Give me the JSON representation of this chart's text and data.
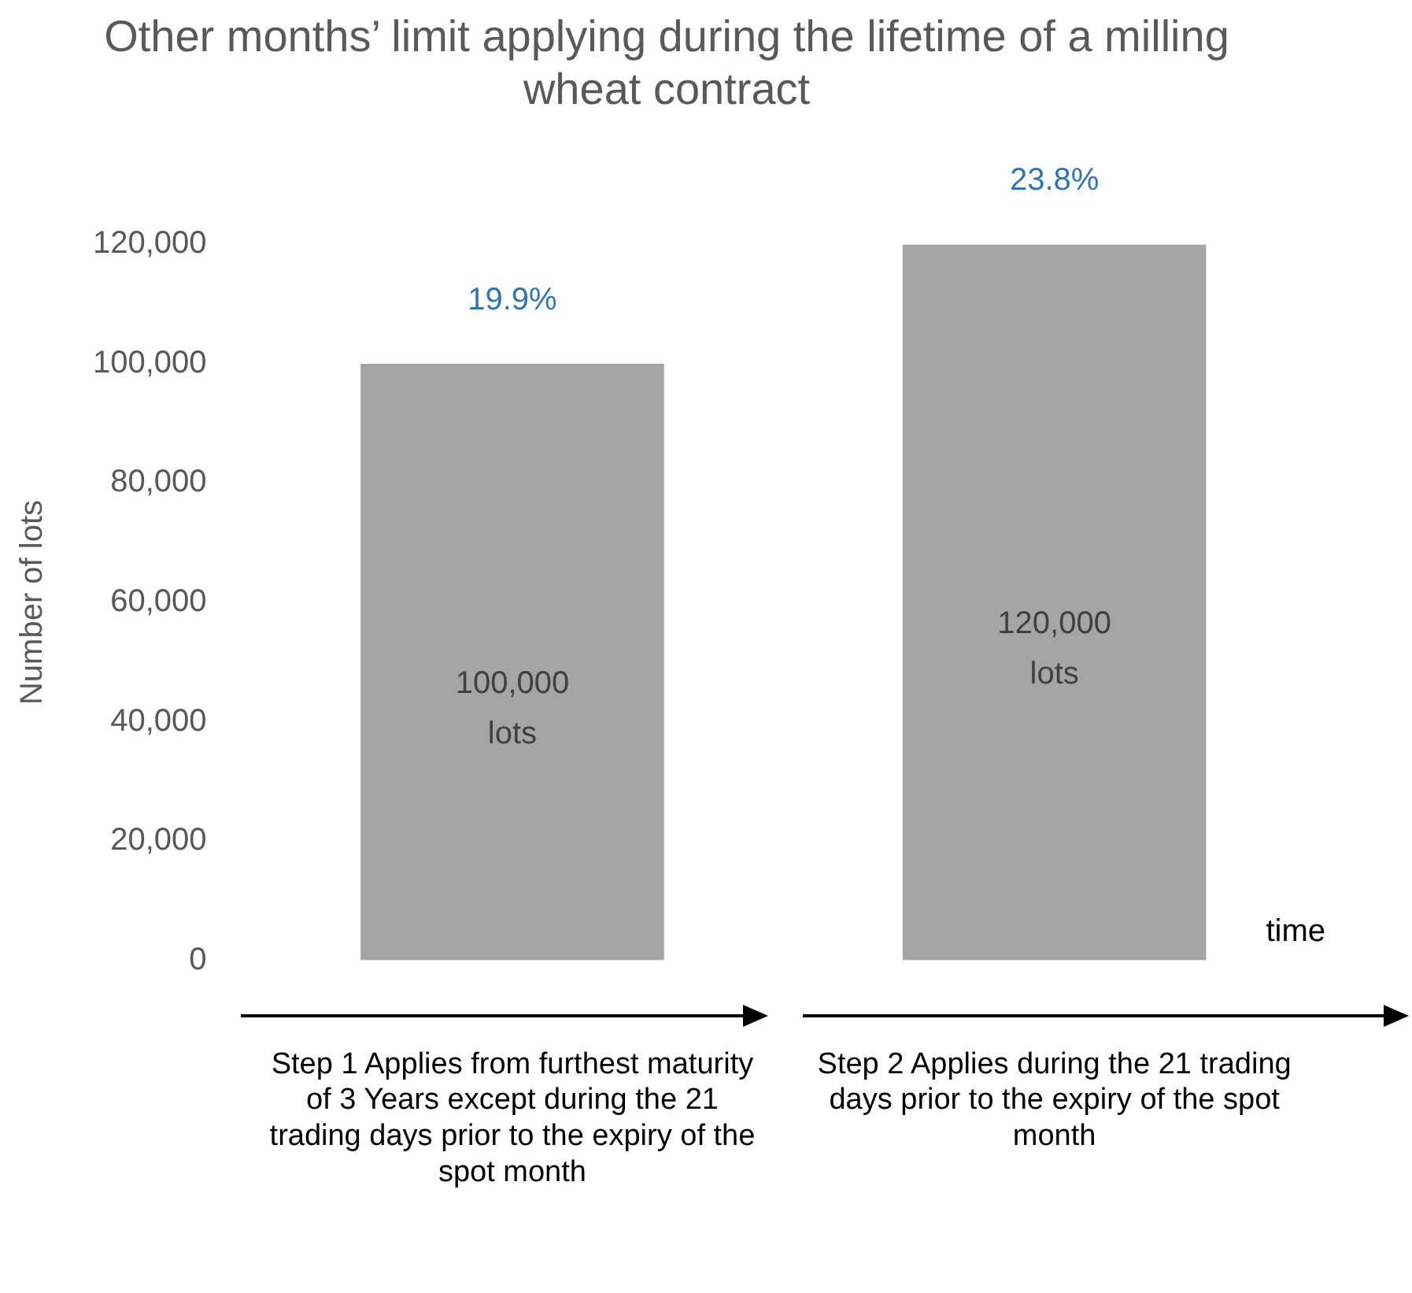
{
  "chart_data": {
    "type": "bar",
    "title": "Other months’ limit applying during the lifetime of a milling wheat contract",
    "categories": [
      "Step 1 Applies from furthest maturity of 3 Years except during the 21 trading days prior to the expiry of the  spot month",
      "Step 2 Applies during  the 21 trading days prior to the expiry of the spot month"
    ],
    "values": [
      100000,
      120000
    ],
    "color": "#a5a5a5",
    "value_labels": [
      "100,000 lots",
      "120,000 lots"
    ],
    "ylabel": "Number of lots",
    "ylim": [
      0,
      120000
    ],
    "yticks": [
      0,
      {
        "value": 20000,
        "label": "20,000"
      },
      {
        "value": 40000,
        "label": "40,000"
      },
      {
        "value": 60000,
        "label": "60,000"
      },
      {
        "value": 80000,
        "label": "80,000"
      },
      {
        "value": 100000,
        "label": "100,000"
      },
      {
        "value": 120000,
        "label": "120,000"
      }
    ],
    "annotations": [
      {
        "text": "19.9%",
        "x": "Step 1 Applies from furthest maturity of 3 Years except during the 21 trading days prior to the expiry of the  spot month",
        "y": 100000
      },
      {
        "text": "23.8%",
        "x": "Step 2 Applies during  the 21 trading days prior to the expiry of the spot month",
        "y": 120000
      },
      "time"
    ],
    "grid": false,
    "legend": false
  }
}
